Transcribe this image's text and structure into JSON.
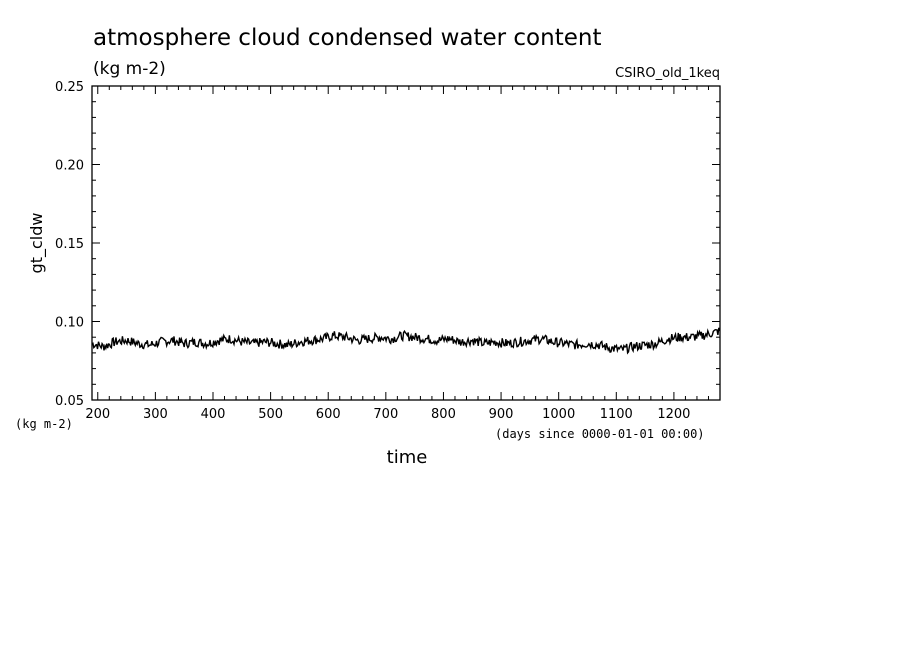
{
  "chart_data": {
    "type": "line",
    "title": "atmosphere cloud condensed water content",
    "subtitle": "(kg m-2)",
    "model_label": "CSIRO_old_1keq",
    "ylabel": "gt_cldw",
    "y_units": "(kg m-2)",
    "xlabel": "time",
    "x_units": "(days since 0000-01-01 00:00)",
    "xlim": [
      190,
      1280
    ],
    "ylim": [
      0.05,
      0.25
    ],
    "x_ticks": [
      200,
      300,
      400,
      500,
      600,
      700,
      800,
      900,
      1000,
      1100,
      1200
    ],
    "x_tick_labels": [
      "200",
      "300",
      "400",
      "500",
      "600",
      "700",
      "800",
      "900",
      "1000",
      "1100",
      "1200"
    ],
    "y_ticks": [
      0.05,
      0.1,
      0.15,
      0.2,
      0.25
    ],
    "y_tick_labels": [
      "0.05",
      "0.10",
      "0.15",
      "0.20",
      "0.25"
    ],
    "grid": false,
    "line_color": "#000000",
    "series": [
      {
        "x": [
          190,
          210,
          230,
          250,
          270,
          290,
          310,
          330,
          350,
          370,
          390,
          410,
          430,
          450,
          470,
          490,
          510,
          530,
          550,
          570,
          590,
          610,
          630,
          650,
          670,
          690,
          710,
          730,
          750,
          770,
          790,
          810,
          830,
          850,
          870,
          890,
          910,
          930,
          950,
          970,
          990,
          1010,
          1030,
          1050,
          1070,
          1090,
          1110,
          1130,
          1150,
          1170,
          1190,
          1210,
          1230,
          1250,
          1270,
          1280
        ],
        "values": [
          0.086,
          0.084,
          0.087,
          0.088,
          0.086,
          0.085,
          0.087,
          0.088,
          0.086,
          0.087,
          0.086,
          0.088,
          0.089,
          0.087,
          0.086,
          0.087,
          0.086,
          0.085,
          0.087,
          0.088,
          0.089,
          0.091,
          0.09,
          0.088,
          0.089,
          0.09,
          0.089,
          0.091,
          0.09,
          0.089,
          0.088,
          0.089,
          0.087,
          0.088,
          0.086,
          0.087,
          0.086,
          0.087,
          0.088,
          0.089,
          0.087,
          0.086,
          0.085,
          0.086,
          0.085,
          0.083,
          0.082,
          0.084,
          0.085,
          0.086,
          0.089,
          0.09,
          0.09,
          0.091,
          0.093,
          0.094
        ]
      }
    ]
  }
}
